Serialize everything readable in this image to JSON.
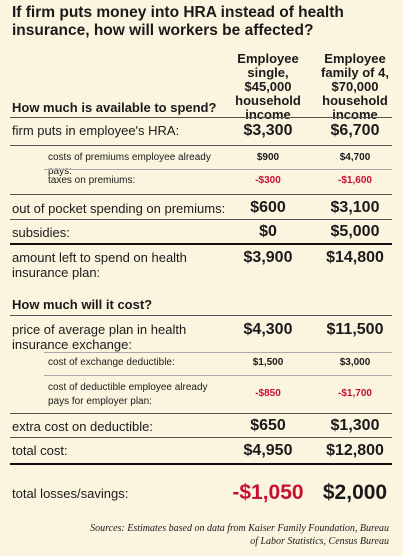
{
  "header": {
    "title": "If firm puts money into HRA instead of health insurance, how will workers be affected?",
    "columns": [
      "Employee single, $45,000 household income",
      "Employee family of 4, $70,000 household income"
    ]
  },
  "sections": [
    {
      "heading": "How much is available to spend?",
      "rows": [
        [
          "firm puts in employee's HRA:",
          "$3,300",
          "$6,700"
        ],
        [
          "costs of premiums employee already pays:",
          "$900",
          "$4,700"
        ],
        [
          "taxes on premiums:",
          "-$300",
          "-$1,600"
        ],
        [
          "out of pocket spending on premiums:",
          "$600",
          "$3,100"
        ],
        [
          "subsidies:",
          "$0",
          "$5,000"
        ],
        [
          "amount left to spend on health insurance plan:",
          "$3,900",
          "$14,800"
        ]
      ]
    },
    {
      "heading": "How much will it cost?",
      "rows": [
        [
          "price of average plan in health insurance exchange:",
          "$4,300",
          "$11,500"
        ],
        [
          "cost of exchange deductible:",
          "$1,500",
          "$3,000"
        ],
        [
          "cost of deductible employee already pays for employer plan:",
          "-$850",
          "-$1,700"
        ],
        [
          "extra cost on deductible:",
          "$650",
          "$1,300"
        ],
        [
          "total cost:",
          "$4,950",
          "$12,800"
        ],
        [
          "total losses/savings:",
          "-$1,050",
          "$2,000"
        ]
      ]
    }
  ],
  "sources": "Sources: Estimates based on data from Kaiser Family Foundation, Bureau of Labor Statistics, Census Bureau"
}
